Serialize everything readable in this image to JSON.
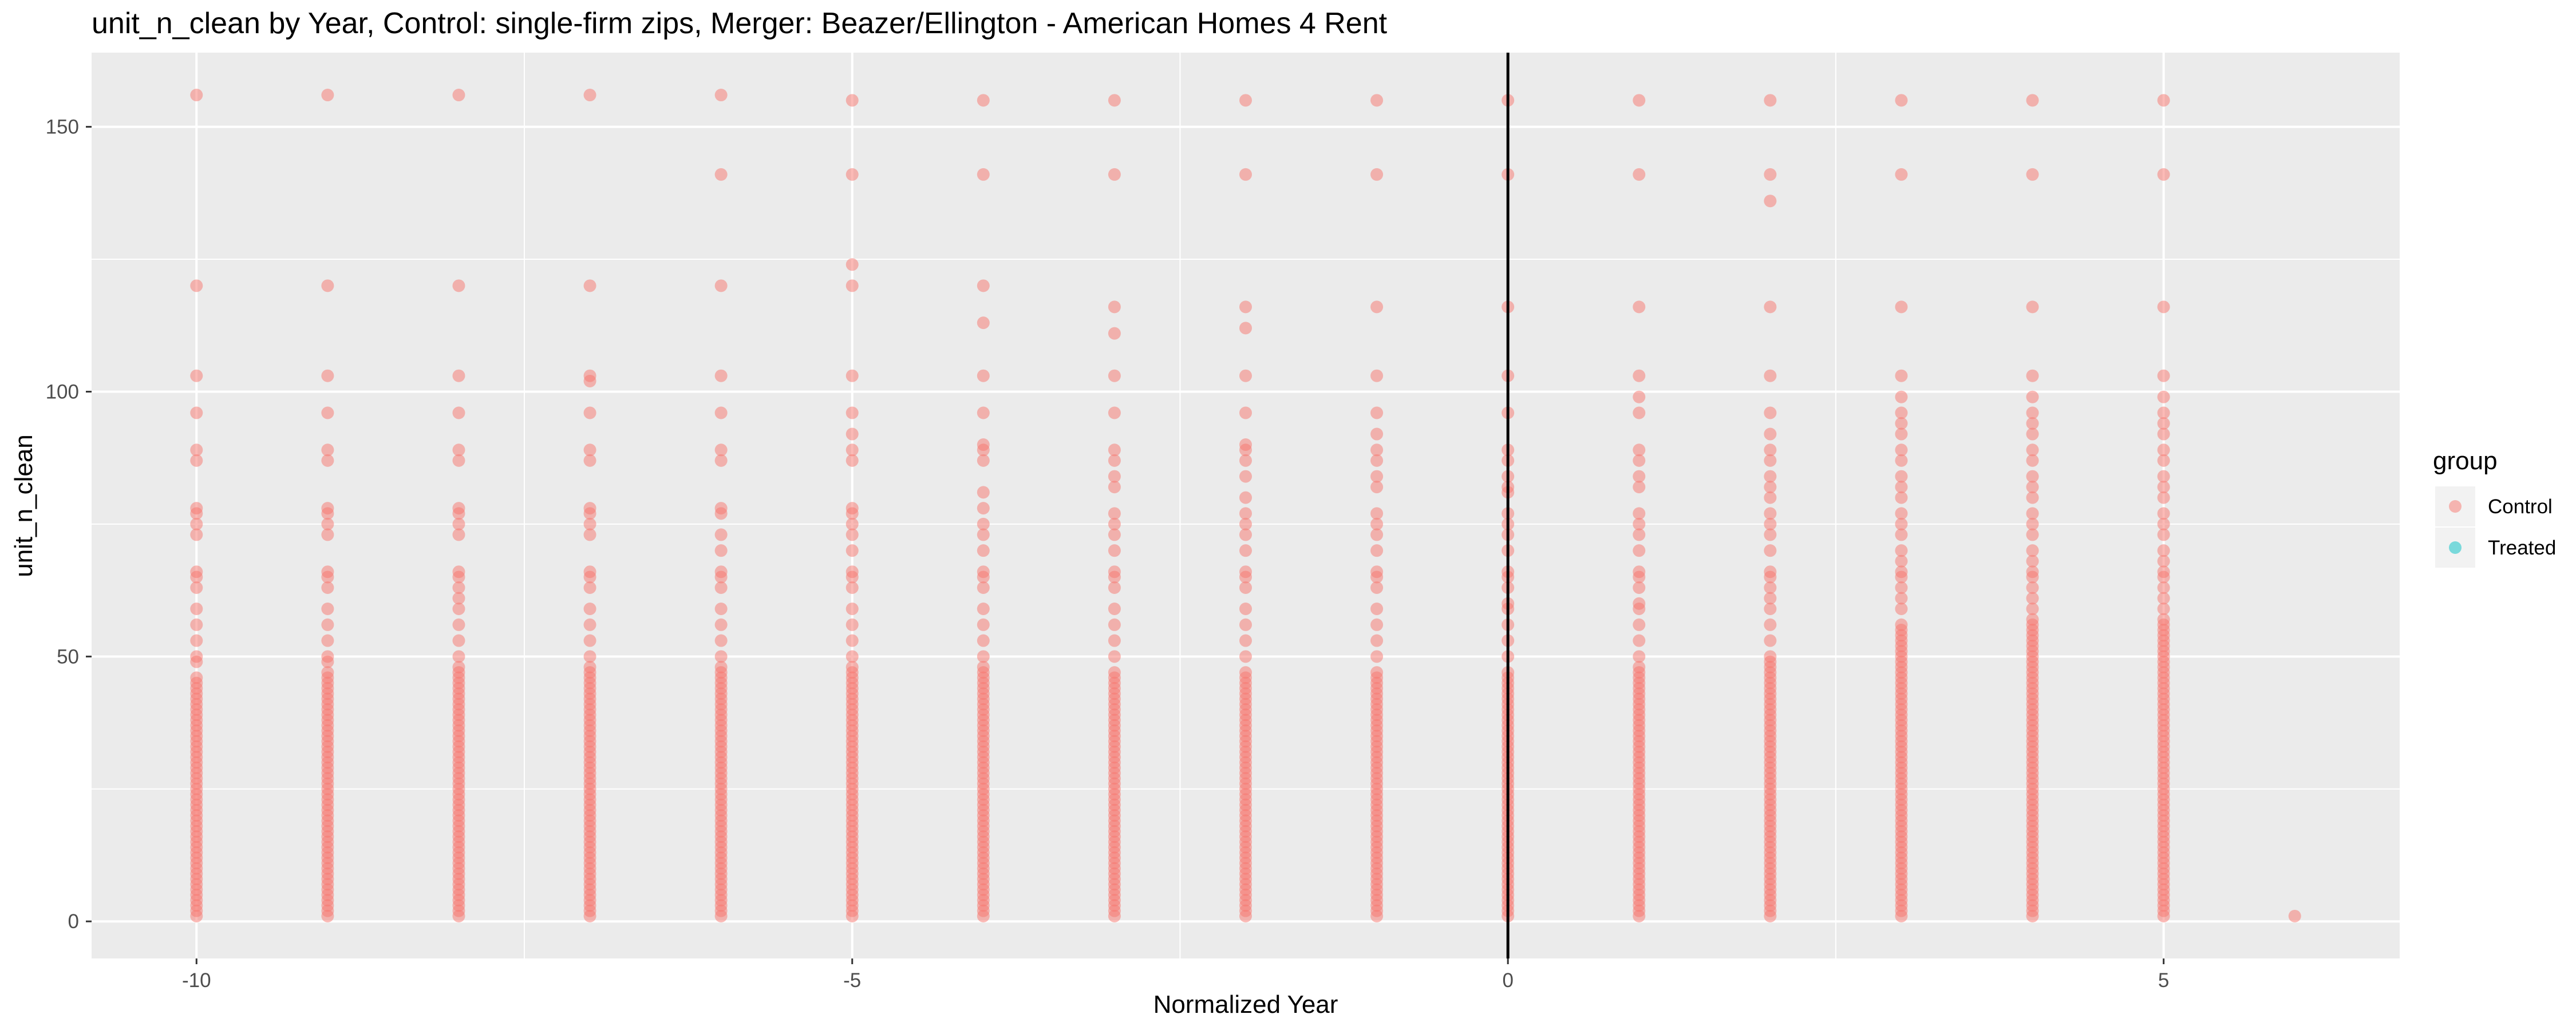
{
  "chart_data": {
    "type": "scatter",
    "title": "unit_n_clean by Year, Control: single-firm zips, Merger: Beazer/Ellington - American Homes 4 Rent",
    "xlabel": "Normalized Year",
    "ylabel": "unit_n_clean",
    "xlim": [
      -10.8,
      6.8
    ],
    "ylim": [
      -7,
      164
    ],
    "x_ticks": [
      -10,
      -5,
      0,
      5
    ],
    "x_tick_labels": [
      "-10",
      "-5",
      "0",
      "5"
    ],
    "y_ticks": [
      0,
      50,
      100,
      150
    ],
    "y_tick_labels": [
      "0",
      "50",
      "100",
      "150"
    ],
    "grid": true,
    "vline_x": 0,
    "legend": {
      "title": "group",
      "placement": "right",
      "entries": [
        {
          "label": "Control",
          "color": "#F8766D"
        },
        {
          "label": "Treated",
          "color": "#00BFC4"
        }
      ]
    },
    "series": [
      {
        "name": "Control",
        "color": "#F8766D",
        "points": [
          {
            "x": -10,
            "dense_max": 46,
            "y": [
              49,
              50,
              53,
              56,
              59,
              63,
              65,
              66,
              73,
              75,
              77,
              78,
              87,
              89,
              96,
              103,
              120,
              156
            ]
          },
          {
            "x": -9,
            "dense_max": 47,
            "y": [
              49,
              50,
              53,
              56,
              59,
              63,
              65,
              66,
              73,
              75,
              77,
              78,
              87,
              89,
              96,
              103,
              120,
              156
            ]
          },
          {
            "x": -8,
            "dense_max": 48,
            "y": [
              50,
              53,
              56,
              59,
              61,
              63,
              65,
              66,
              73,
              75,
              77,
              78,
              87,
              89,
              96,
              103,
              120,
              156
            ]
          },
          {
            "x": -7,
            "dense_max": 48,
            "y": [
              50,
              53,
              56,
              59,
              63,
              65,
              66,
              73,
              75,
              77,
              78,
              87,
              89,
              96,
              102,
              103,
              120,
              156
            ]
          },
          {
            "x": -6,
            "dense_max": 48,
            "y": [
              50,
              53,
              56,
              59,
              63,
              65,
              66,
              70,
              73,
              77,
              78,
              87,
              89,
              96,
              103,
              120,
              141,
              156
            ]
          },
          {
            "x": -5,
            "dense_max": 48,
            "y": [
              50,
              53,
              56,
              59,
              63,
              65,
              66,
              70,
              73,
              75,
              77,
              78,
              87,
              89,
              92,
              96,
              103,
              120,
              124,
              141,
              155
            ]
          },
          {
            "x": -4,
            "dense_max": 48,
            "y": [
              50,
              53,
              56,
              59,
              63,
              65,
              66,
              70,
              73,
              75,
              78,
              81,
              87,
              89,
              90,
              96,
              103,
              113,
              120,
              141,
              155
            ]
          },
          {
            "x": -3,
            "dense_max": 47,
            "y": [
              50,
              53,
              56,
              59,
              63,
              65,
              66,
              70,
              73,
              75,
              77,
              82,
              84,
              87,
              89,
              96,
              103,
              111,
              116,
              141,
              155
            ]
          },
          {
            "x": -2,
            "dense_max": 47,
            "y": [
              50,
              53,
              56,
              59,
              63,
              65,
              66,
              70,
              73,
              75,
              77,
              80,
              84,
              87,
              89,
              90,
              96,
              103,
              112,
              116,
              141,
              155
            ]
          },
          {
            "x": -1,
            "dense_max": 47,
            "y": [
              50,
              53,
              56,
              59,
              63,
              65,
              66,
              70,
              73,
              75,
              77,
              82,
              84,
              87,
              89,
              92,
              96,
              103,
              116,
              141,
              155
            ]
          },
          {
            "x": 0,
            "dense_max": 47,
            "y": [
              50,
              53,
              56,
              59,
              60,
              63,
              65,
              66,
              70,
              73,
              75,
              77,
              81,
              82,
              84,
              87,
              89,
              96,
              103,
              116,
              141,
              155
            ]
          },
          {
            "x": 1,
            "dense_max": 48,
            "y": [
              50,
              53,
              56,
              59,
              60,
              63,
              65,
              66,
              70,
              73,
              75,
              77,
              82,
              84,
              87,
              89,
              96,
              99,
              103,
              116,
              141,
              155
            ]
          },
          {
            "x": 2,
            "dense_max": 49,
            "y": [
              50,
              53,
              56,
              59,
              61,
              63,
              65,
              66,
              70,
              73,
              75,
              77,
              80,
              82,
              84,
              87,
              89,
              92,
              96,
              103,
              116,
              136,
              141,
              155
            ]
          },
          {
            "x": 3,
            "dense_max": 55,
            "y": [
              56,
              59,
              61,
              63,
              65,
              66,
              68,
              70,
              73,
              75,
              77,
              80,
              82,
              84,
              87,
              89,
              92,
              94,
              96,
              99,
              103,
              116,
              141,
              155
            ]
          },
          {
            "x": 4,
            "dense_max": 56,
            "y": [
              57,
              59,
              61,
              63,
              65,
              66,
              68,
              70,
              73,
              75,
              77,
              80,
              82,
              84,
              87,
              89,
              92,
              94,
              96,
              99,
              103,
              116,
              141,
              155
            ]
          },
          {
            "x": 5,
            "dense_max": 56,
            "y": [
              57,
              59,
              61,
              63,
              65,
              66,
              68,
              70,
              73,
              75,
              77,
              80,
              82,
              84,
              87,
              89,
              92,
              94,
              96,
              99,
              103,
              116,
              141,
              155
            ]
          },
          {
            "x": 6,
            "dense_max": 1,
            "y": []
          }
        ]
      },
      {
        "name": "Treated",
        "color": "#00BFC4",
        "points": []
      }
    ]
  }
}
